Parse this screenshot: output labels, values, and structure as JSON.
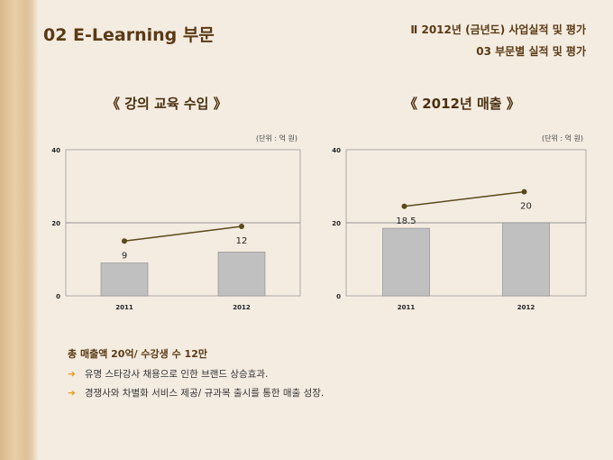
{
  "header": {
    "title": "02  E-Learning 부문",
    "section": "Ⅱ  2012년 (금년도) 사업실적 및 평가",
    "subsection": "03  부문별 실적 및 평가"
  },
  "chart_data": [
    {
      "type": "bar",
      "title": "《  강의 교육 수입  》",
      "unit": "(단위 : 억 원)",
      "categories": [
        "2011",
        "2012"
      ],
      "values": [
        9,
        12
      ],
      "data_labels": [
        "9",
        "12"
      ],
      "line_values": [
        15,
        19
      ],
      "ylim": [
        0,
        40
      ],
      "yticks": [
        "0",
        "20",
        "40"
      ],
      "bar_color": "#c0c0c0",
      "line_color": "#5a4a1a"
    },
    {
      "type": "bar",
      "title": "《  2012년 매출  》",
      "unit": "(단위 : 억 원)",
      "categories": [
        "2011",
        "2012"
      ],
      "values": [
        18.5,
        20
      ],
      "data_labels": [
        "18.5",
        "20"
      ],
      "line_values": [
        24.5,
        28.5
      ],
      "ylim": [
        0,
        40
      ],
      "yticks": [
        "0",
        "20",
        "40"
      ],
      "bar_color": "#c0c0c0",
      "line_color": "#5a4a1a"
    }
  ],
  "summary": "총 매출액 20억/ 수강생 수 12만",
  "bullets": [
    "유명 스타강사 채용으로 인한 브랜드 상승효과.",
    "경쟁사와 차별화 서비스 제공/ 규과목 출시를 통한 매출 성장."
  ],
  "arrow": "➔"
}
